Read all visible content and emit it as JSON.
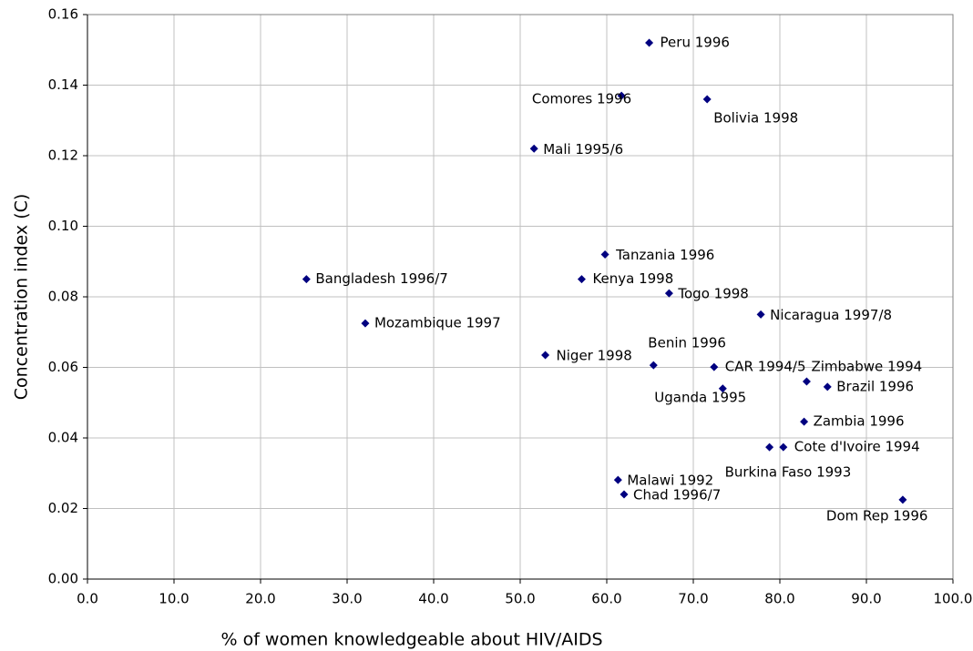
{
  "chart_data": {
    "type": "scatter",
    "x_label": "% of women knowledgeable about HIV/AIDS",
    "y_label": "Concentration index (C)",
    "color": "#000080",
    "grid": true,
    "xlim": [
      0,
      100
    ],
    "ylim": [
      0,
      0.16
    ],
    "xticks": [
      {
        "value": 0,
        "label": "0.0"
      },
      {
        "value": 10,
        "label": "10.0"
      },
      {
        "value": 20,
        "label": "20.0"
      },
      {
        "value": 30,
        "label": "30.0"
      },
      {
        "value": 40,
        "label": "40.0"
      },
      {
        "value": 50,
        "label": "50.0"
      },
      {
        "value": 60,
        "label": "60.0"
      },
      {
        "value": 70,
        "label": "70.0"
      },
      {
        "value": 80,
        "label": "80.0"
      },
      {
        "value": 90,
        "label": "90.0"
      },
      {
        "value": 100,
        "label": "100.0"
      }
    ],
    "yticks": [
      {
        "value": 0,
        "label": "0.00"
      },
      {
        "value": 0.02,
        "label": "0.02"
      },
      {
        "value": 0.04,
        "label": "0.04"
      },
      {
        "value": 0.06,
        "label": "0.06"
      },
      {
        "value": 0.08,
        "label": "0.08"
      },
      {
        "value": 0.1,
        "label": "0.10"
      },
      {
        "value": 0.12,
        "label": "0.12"
      },
      {
        "value": 0.14,
        "label": "0.14"
      },
      {
        "value": 0.16,
        "label": "0.16"
      }
    ],
    "labels": [
      "Peru 1996",
      "Comores 1996",
      "Bolivia 1998",
      "Mali 1995/6",
      "Tanzania 1996",
      "Bangladesh 1996/7",
      "Kenya 1998",
      "Togo 1998",
      "Nicaragua 1997/8",
      "Mozambique 1997",
      "Niger 1998",
      "Benin 1996",
      "CAR 1994/5",
      "Zimbabwe 1994",
      "Brazil 1996",
      "Uganda 1995",
      "Zambia 1996",
      "Cote d'Ivoire 1994",
      "Burkina Faso 1993",
      "Malawi 1992",
      "Chad 1996/7",
      "Dom Rep 1996"
    ],
    "x": [
      64.9,
      61.7,
      71.6,
      51.6,
      59.8,
      25.3,
      57.1,
      67.2,
      77.8,
      32.1,
      52.9,
      65.4,
      72.4,
      83.1,
      85.5,
      73.4,
      82.8,
      80.4,
      78.8,
      61.3,
      62.0,
      94.2
    ],
    "values": [
      0.152,
      0.137,
      0.136,
      0.122,
      0.092,
      0.085,
      0.085,
      0.081,
      0.075,
      0.0725,
      0.0635,
      0.0606,
      0.0601,
      0.056,
      0.0545,
      0.054,
      0.0446,
      0.0374,
      0.0374,
      0.0281,
      0.024,
      0.0225
    ]
  }
}
